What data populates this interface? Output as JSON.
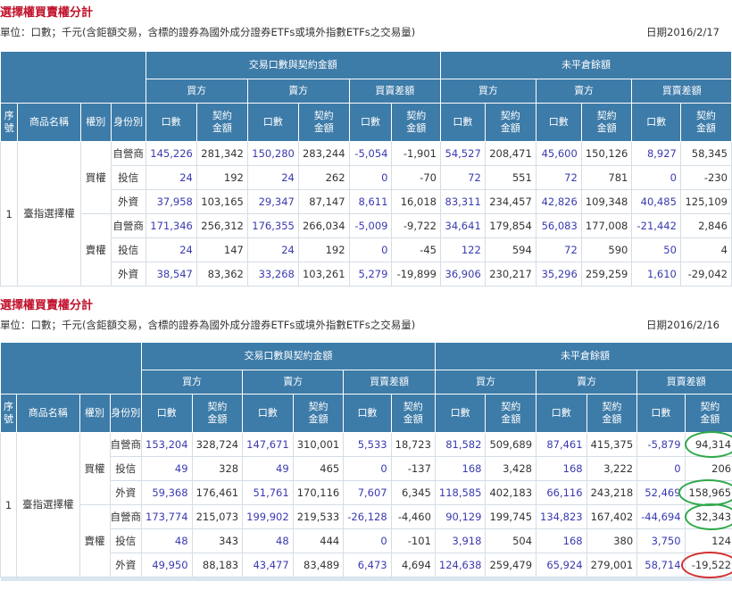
{
  "columns": {
    "group_trade": "交易口數與契約金額",
    "group_oi": "未平倉餘額",
    "buy": "買方",
    "sell": "賣方",
    "diff": "買賣差額",
    "seq": "序號",
    "product": "商品名稱",
    "kind": "權別",
    "identity": "身份別",
    "lots": "口數",
    "amount": "契約金額"
  },
  "colors": {
    "header": "#3d7ba8",
    "title": "#c0102a",
    "lots_text": "#3a3ab0",
    "circle_green": "#2ea84a",
    "circle_red": "#d23030"
  },
  "sections": [
    {
      "title": "選擇權買賣權分計",
      "unit": "單位：口數；千元(含鉅額交易，含標的證券為國外成分證券ETFs或境外指數ETFs之交易量)",
      "date": "日期2016/2/17",
      "seq": "1",
      "product": "臺指選擇權",
      "groups": [
        {
          "kind": "買權",
          "rows": [
            {
              "identity": "自營商",
              "values": [
                "145,226",
                "281,342",
                "150,280",
                "283,244",
                "-5,054",
                "-1,901",
                "54,527",
                "208,471",
                "45,600",
                "150,126",
                "8,927",
                "58,345"
              ]
            },
            {
              "identity": "投信",
              "values": [
                "24",
                "192",
                "24",
                "262",
                "0",
                "-70",
                "72",
                "551",
                "72",
                "781",
                "0",
                "-230"
              ]
            },
            {
              "identity": "外資",
              "values": [
                "37,958",
                "103,165",
                "29,347",
                "87,147",
                "8,611",
                "16,018",
                "83,311",
                "234,457",
                "42,826",
                "109,348",
                "40,485",
                "125,109"
              ]
            }
          ]
        },
        {
          "kind": "賣權",
          "rows": [
            {
              "identity": "自營商",
              "values": [
                "171,346",
                "256,312",
                "176,355",
                "266,034",
                "-5,009",
                "-9,722",
                "34,641",
                "179,854",
                "56,083",
                "177,008",
                "-21,442",
                "2,846"
              ]
            },
            {
              "identity": "投信",
              "values": [
                "24",
                "147",
                "24",
                "192",
                "0",
                "-45",
                "122",
                "594",
                "72",
                "590",
                "50",
                "4"
              ]
            },
            {
              "identity": "外資",
              "values": [
                "38,547",
                "83,362",
                "33,268",
                "103,261",
                "5,279",
                "-19,899",
                "36,906",
                "230,217",
                "35,296",
                "259,259",
                "1,610",
                "-29,042"
              ]
            }
          ]
        }
      ]
    },
    {
      "title": "選擇權買賣權分計",
      "unit": "單位：口數；千元(含鉅額交易，含標的證券為國外成分證券ETFs或境外指數ETFs之交易量)",
      "date": "日期2016/2/16",
      "seq": "1",
      "product": "臺指選擇權",
      "groups": [
        {
          "kind": "買權",
          "rows": [
            {
              "identity": "自營商",
              "circle": "green",
              "values": [
                "153,204",
                "328,724",
                "147,671",
                "310,001",
                "5,533",
                "18,723",
                "81,582",
                "509,689",
                "87,461",
                "415,375",
                "-5,879",
                "94,314"
              ]
            },
            {
              "identity": "投信",
              "values": [
                "49",
                "328",
                "49",
                "465",
                "0",
                "-137",
                "168",
                "3,428",
                "168",
                "3,222",
                "0",
                "206"
              ]
            },
            {
              "identity": "外資",
              "circle": "green",
              "values": [
                "59,368",
                "176,461",
                "51,761",
                "170,116",
                "7,607",
                "6,345",
                "118,585",
                "402,183",
                "66,116",
                "243,218",
                "52,469",
                "158,965"
              ]
            }
          ]
        },
        {
          "kind": "賣權",
          "rows": [
            {
              "identity": "自營商",
              "circle": "green",
              "values": [
                "173,774",
                "215,073",
                "199,902",
                "219,533",
                "-26,128",
                "-4,460",
                "90,129",
                "199,745",
                "134,823",
                "167,402",
                "-44,694",
                "32,343"
              ]
            },
            {
              "identity": "投信",
              "values": [
                "48",
                "343",
                "48",
                "444",
                "0",
                "-101",
                "3,918",
                "504",
                "168",
                "380",
                "3,750",
                "124"
              ]
            },
            {
              "identity": "外資",
              "circle": "red",
              "values": [
                "49,950",
                "88,183",
                "43,477",
                "83,489",
                "6,473",
                "4,694",
                "124,638",
                "259,479",
                "65,924",
                "279,001",
                "58,714",
                "-19,522"
              ]
            }
          ]
        }
      ]
    }
  ]
}
